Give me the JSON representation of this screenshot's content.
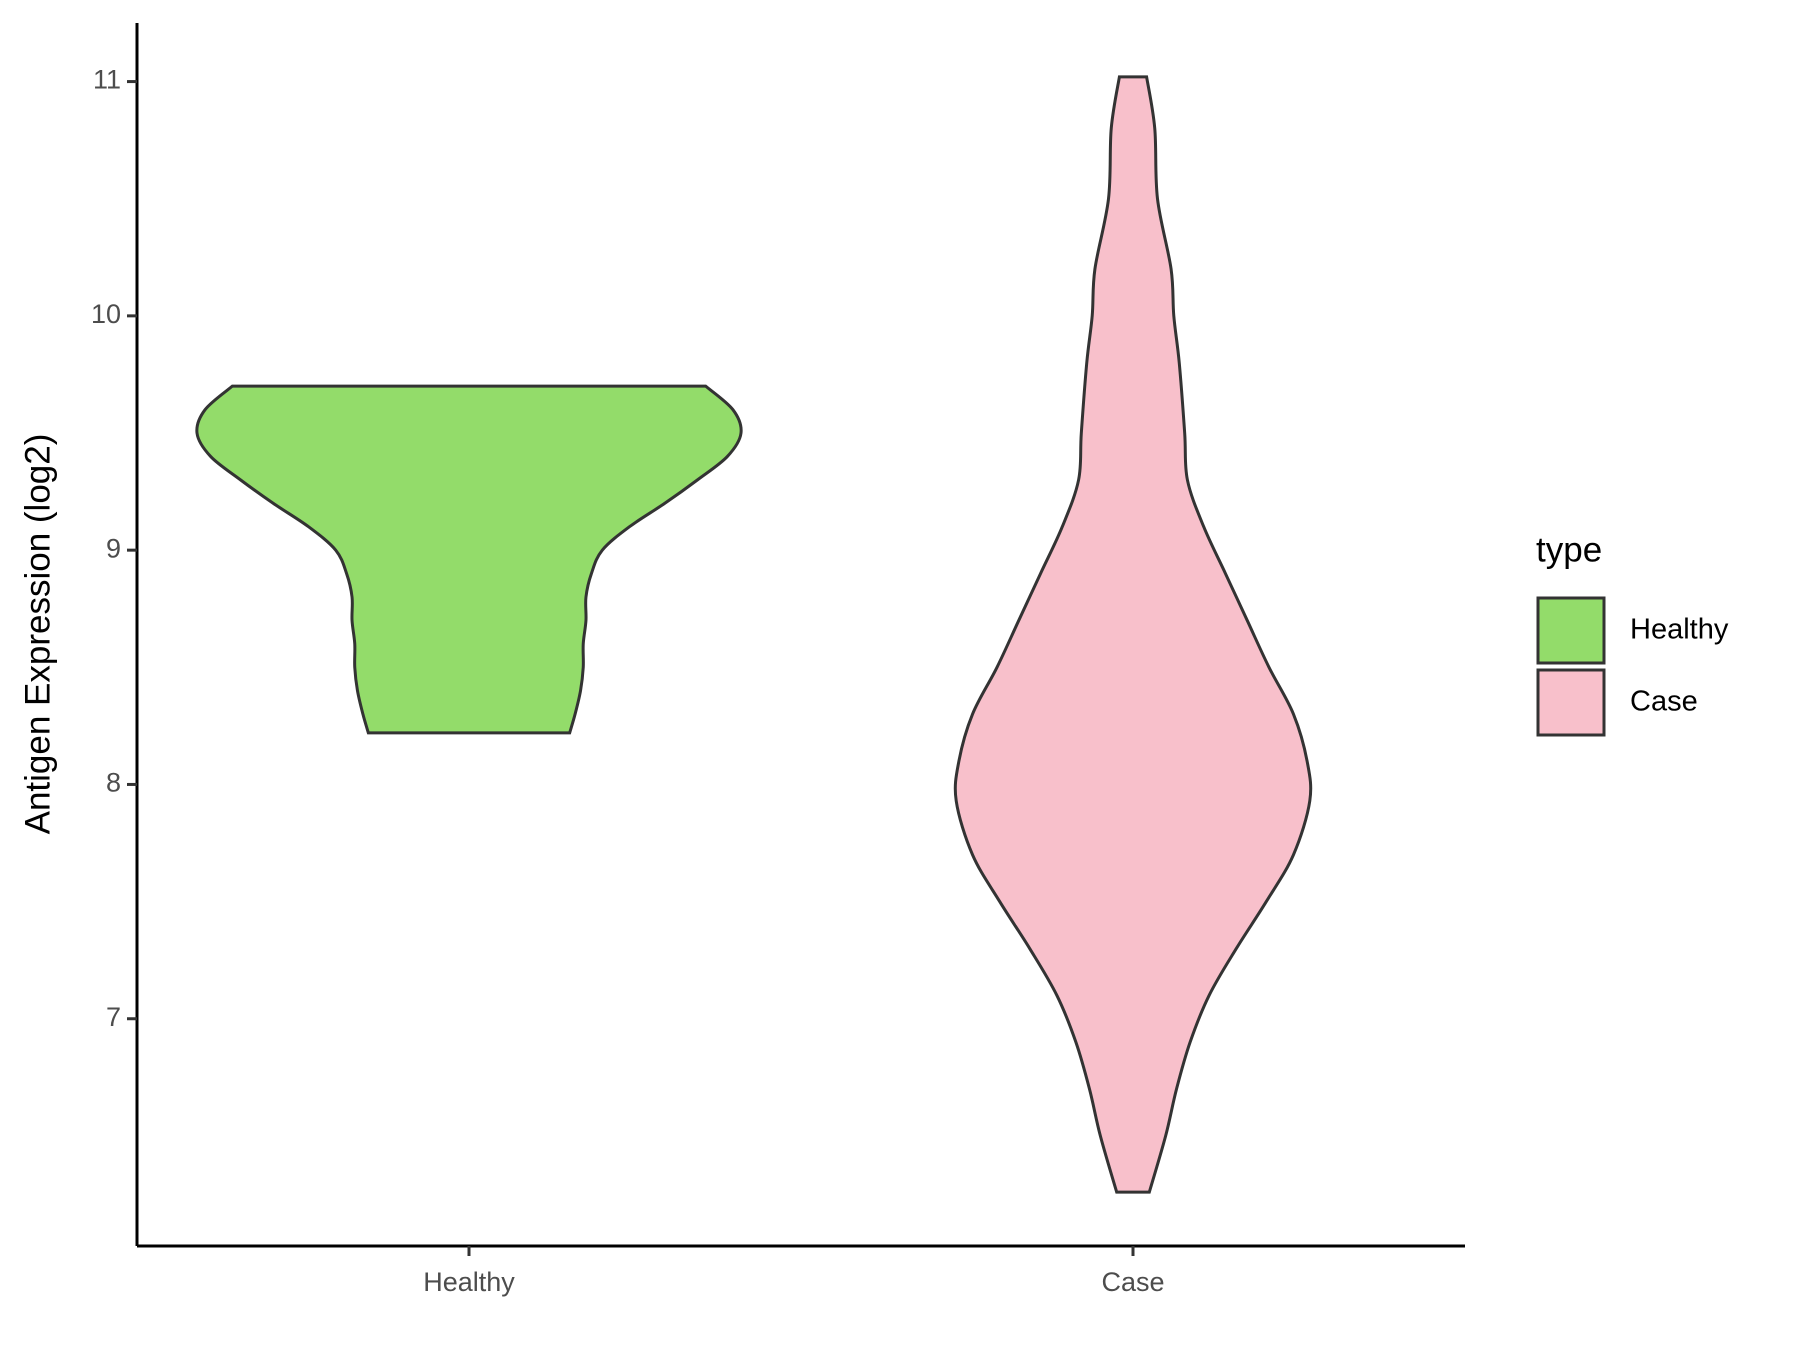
{
  "chart_data": {
    "type": "violin",
    "y_label": "Antigen Expression (log2)",
    "categories": [
      "Healthy",
      "Case"
    ],
    "ylim": [
      6.03,
      11.25
    ],
    "yticks": [
      7,
      8,
      9,
      10,
      11
    ],
    "legend_title": "type",
    "legend_position": "right",
    "series": [
      {
        "name": "Healthy",
        "color": "#93dc6a",
        "y": [
          9.7,
          9.6,
          9.5,
          9.4,
          9.3,
          9.2,
          9.1,
          9.0,
          8.9,
          8.8,
          8.7,
          8.6,
          8.5,
          8.4,
          8.3,
          8.22
        ],
        "density": [
          0.87,
          0.97,
          1.0,
          0.95,
          0.84,
          0.72,
          0.59,
          0.49,
          0.45,
          0.43,
          0.43,
          0.42,
          0.42,
          0.41,
          0.39,
          0.37
        ]
      },
      {
        "name": "Case",
        "color": "#f8c0cb",
        "y": [
          11.02,
          10.8,
          10.5,
          10.2,
          10.0,
          9.8,
          9.5,
          9.3,
          9.1,
          8.9,
          8.7,
          8.5,
          8.3,
          8.1,
          7.93,
          7.7,
          7.5,
          7.3,
          7.1,
          6.9,
          6.7,
          6.5,
          6.26
        ],
        "density": [
          0.05,
          0.08,
          0.09,
          0.14,
          0.15,
          0.17,
          0.19,
          0.2,
          0.26,
          0.34,
          0.42,
          0.5,
          0.59,
          0.64,
          0.65,
          0.59,
          0.49,
          0.38,
          0.28,
          0.21,
          0.16,
          0.12,
          0.06
        ]
      }
    ]
  }
}
